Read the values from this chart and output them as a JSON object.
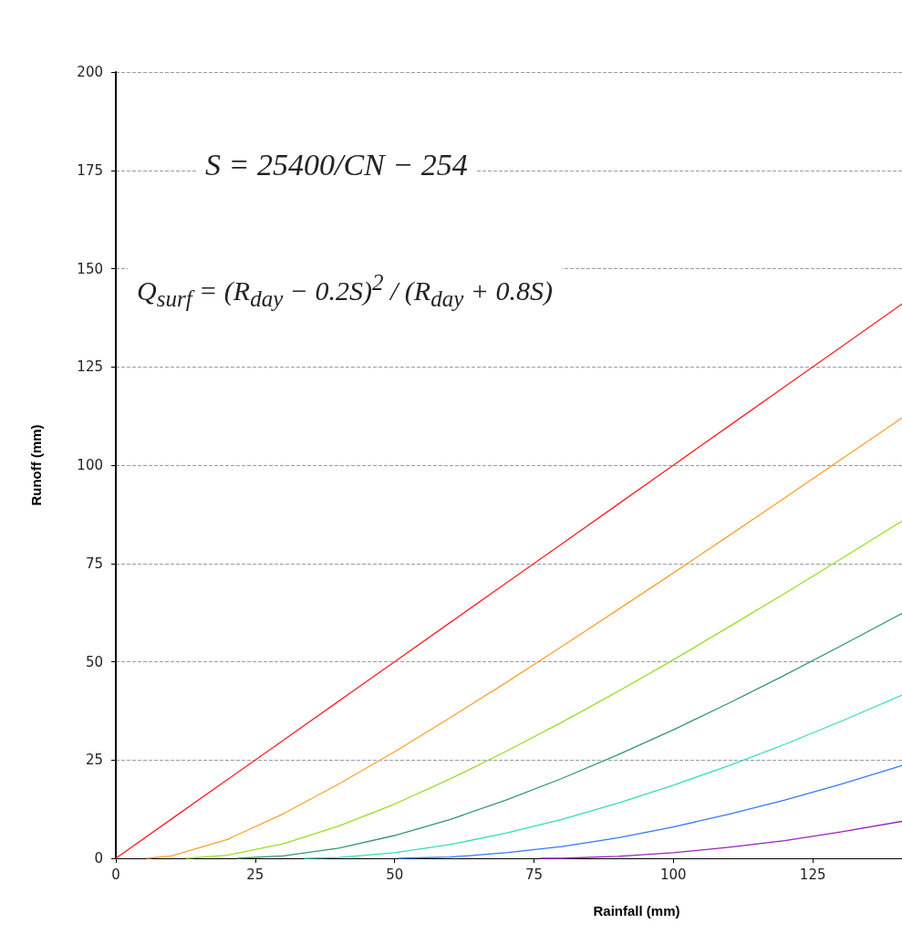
{
  "chart_data": {
    "type": "line",
    "xlabel": "Rainfall (mm)",
    "ylabel": "Runoff (mm)",
    "annotations": [
      "S = 25400/CN − 254",
      "Q$_{surf}$ = (R$_{day}$ − 0.2S)$^{2}$ / (R$_{day}$ + 0.8S)"
    ],
    "xlim": [
      0,
      141
    ],
    "xticks": [
      0,
      25,
      50,
      75,
      100,
      125
    ],
    "ylim": [
      0,
      200
    ],
    "yticks": [
      0,
      25,
      50,
      75,
      100,
      125,
      150,
      175,
      200
    ],
    "grid": "y",
    "marker": "none",
    "line_style": "solid",
    "series": [
      {
        "color": "#ff2020",
        "x": [
          0,
          10,
          20,
          30,
          40,
          50,
          60,
          70,
          80,
          90,
          100,
          110,
          120,
          130,
          141
        ],
        "values": [
          0,
          10,
          20,
          30,
          40,
          50,
          60,
          70,
          80,
          90,
          100,
          110,
          120,
          130,
          141
        ]
      },
      {
        "color": "#ffa030",
        "x": [
          5.6,
          10,
          20,
          30,
          40,
          50,
          60,
          70,
          80,
          90,
          100,
          110,
          120,
          130,
          141
        ],
        "values": [
          0,
          0.6,
          4.8,
          11.3,
          18.9,
          27.1,
          35.8,
          44.7,
          53.9,
          63.2,
          72.6,
          82.1,
          91.7,
          101.4,
          112
        ]
      },
      {
        "color": "#99dd22",
        "x": [
          12.7,
          20,
          30,
          40,
          50,
          60,
          70,
          80,
          90,
          100,
          110,
          120,
          130,
          141
        ],
        "values": [
          0,
          0.8,
          3.7,
          8.2,
          13.8,
          20.2,
          27.2,
          34.6,
          42.4,
          50.5,
          58.9,
          67.4,
          76.1,
          85.8
        ]
      },
      {
        "color": "#339966",
        "x": [
          21.8,
          30,
          40,
          50,
          60,
          70,
          80,
          90,
          100,
          110,
          120,
          130,
          141
        ],
        "values": [
          0,
          0.6,
          2.6,
          5.8,
          9.9,
          14.8,
          20.3,
          26.3,
          32.7,
          39.5,
          46.6,
          54,
          62.3
        ]
      },
      {
        "color": "#33ddbb",
        "x": [
          33.9,
          40,
          50,
          60,
          70,
          80,
          90,
          100,
          110,
          120,
          130,
          141
        ],
        "values": [
          0,
          0.2,
          1.4,
          3.5,
          6.4,
          9.9,
          14,
          18.6,
          23.6,
          29,
          34.8,
          41.5
        ]
      },
      {
        "color": "#3377ff",
        "x": [
          50.8,
          60,
          70,
          80,
          90,
          100,
          110,
          120,
          130,
          141
        ],
        "values": [
          0,
          0.3,
          1.4,
          3,
          5.2,
          8,
          11.2,
          14.8,
          18.8,
          23.6
        ]
      },
      {
        "color": "#9922bb",
        "x": [
          76.2,
          80,
          90,
          100,
          110,
          120,
          130,
          141
        ],
        "values": [
          0,
          0,
          0.5,
          1.4,
          2.8,
          4.5,
          6.7,
          9.4
        ]
      }
    ]
  }
}
